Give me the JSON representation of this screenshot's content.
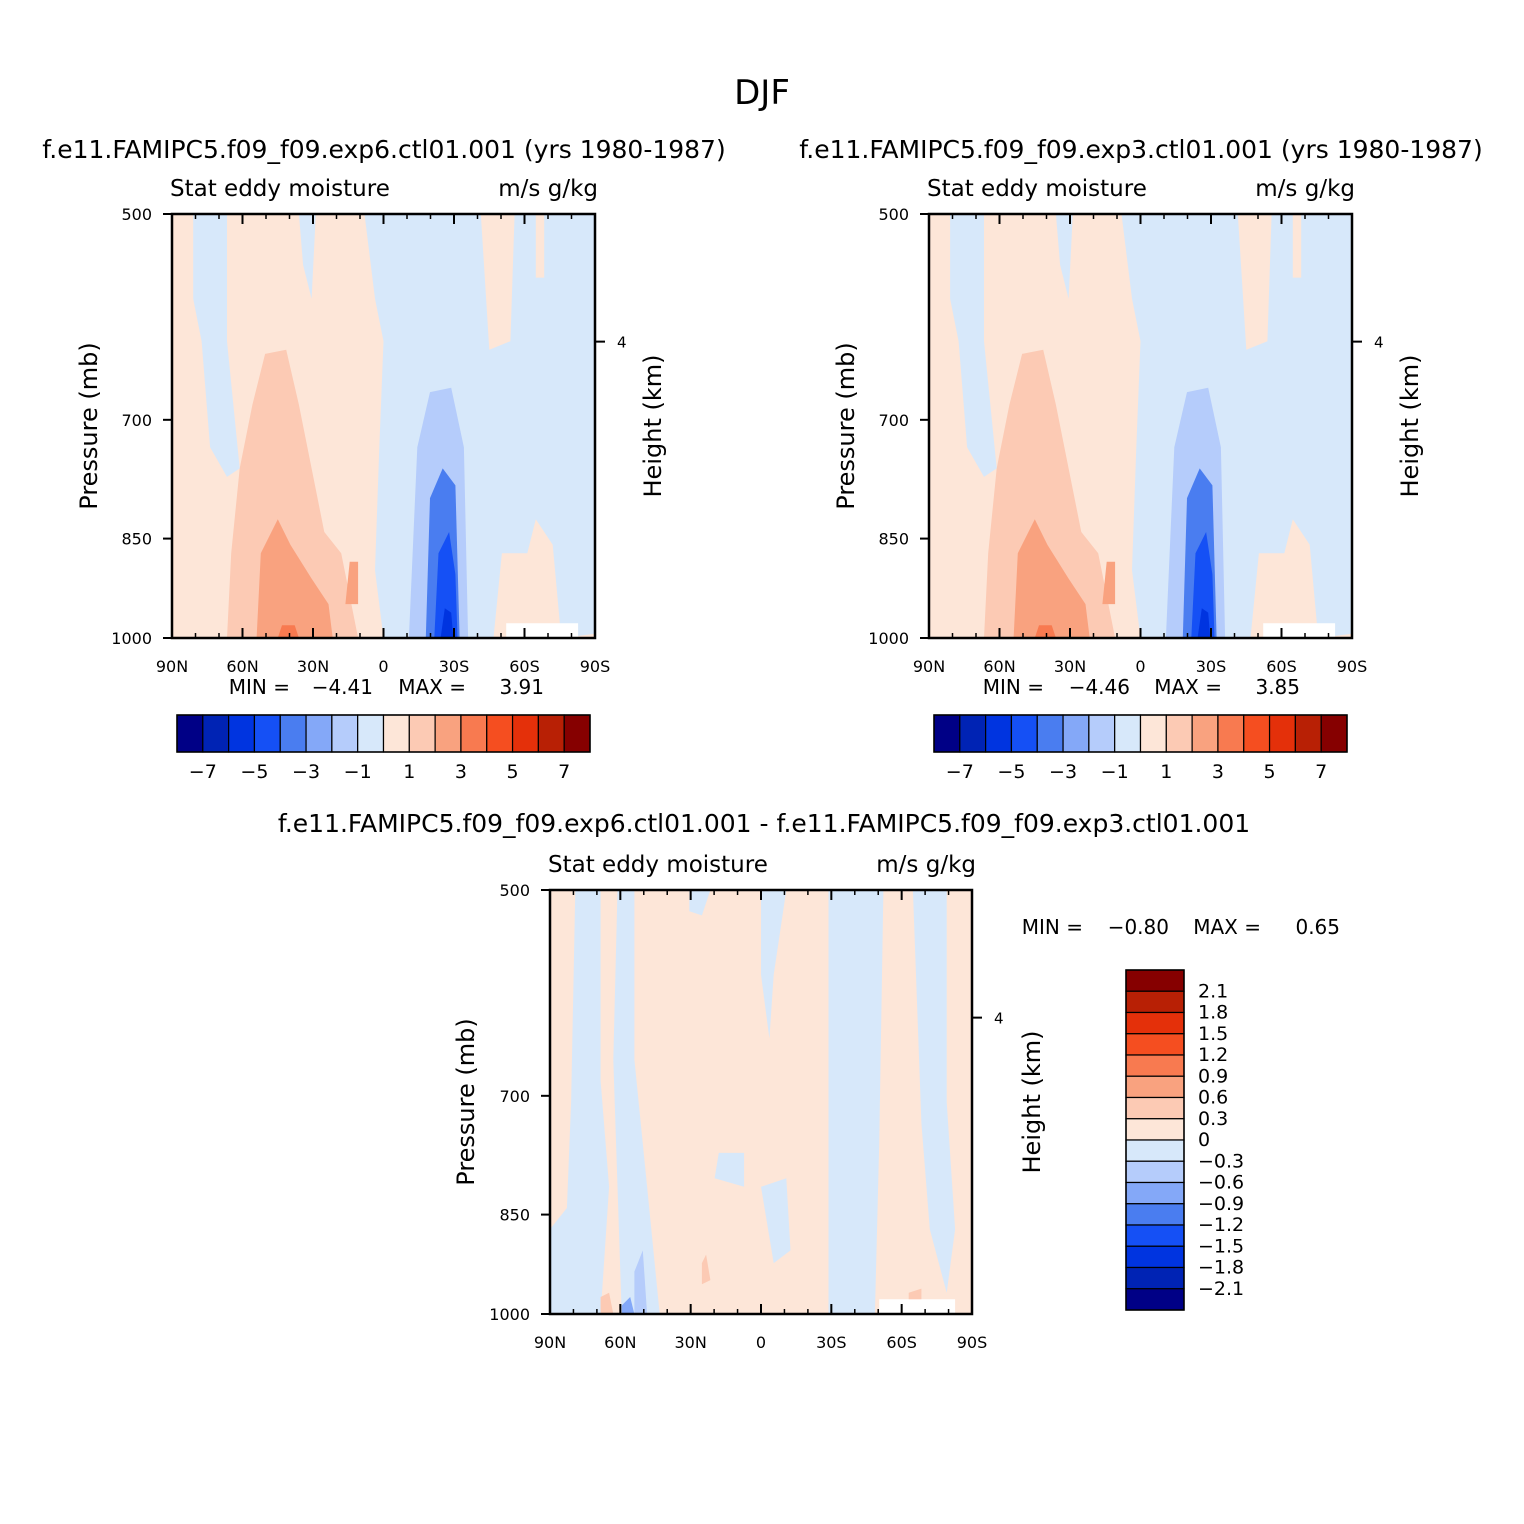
{
  "figure_title": "DJF",
  "colors": {
    "main_scale": [
      "#000086",
      "#0023b4",
      "#0034e0",
      "#1550f5",
      "#4a7df0",
      "#84a8f8",
      "#b5ccfb",
      "#d7e8fa",
      "#fde6d8",
      "#fccab4",
      "#f9a27f",
      "#f87a50",
      "#f54e20",
      "#e4300a",
      "#b82005",
      "#860000"
    ],
    "diff_scale": [
      "#000086",
      "#0023b4",
      "#0034e0",
      "#1550f5",
      "#4a7df0",
      "#84a8f8",
      "#b5ccfb",
      "#d7e8fa",
      "#fde6d8",
      "#fccab4",
      "#f9a27f",
      "#f87a50",
      "#f54e20",
      "#e4300a",
      "#b82005",
      "#860000"
    ]
  },
  "chart_data": [
    {
      "type": "heatmap",
      "title": "f.e11.FAMIPC5.f09_f09.exp6.ctl01.001 (yrs 1980-1987)",
      "left_string": "Stat eddy moisture",
      "right_string": "m/s g/kg",
      "ylabel": "Pressure (mb)",
      "ylabel_right": "Height (km)",
      "x_ticks": [
        "90N",
        "60N",
        "30N",
        "0",
        "30S",
        "60S",
        "90S"
      ],
      "y_ticks": [
        "500",
        "700",
        "850",
        "1000"
      ],
      "y_ticks_values": [
        500,
        700,
        850,
        1000
      ],
      "right_ticks": [
        "4"
      ],
      "right_ticks_pressure": [
        616
      ],
      "ylim": [
        1000,
        500
      ],
      "xlim": [
        90,
        -90
      ],
      "min_label": "MIN =",
      "min_value": "-4.41",
      "max_label": "MAX =",
      "max_value": "3.91",
      "levels": [
        -7,
        -6,
        -5,
        -4,
        -3,
        -2,
        -1,
        0,
        1,
        2,
        3,
        4,
        5,
        6,
        7
      ],
      "colorbar_labels": [
        "-7",
        "-5",
        "-3",
        "-1",
        "1",
        "3",
        "5",
        "7"
      ],
      "features": [
        {
          "lat": 40,
          "p_center": 870,
          "value": 2.5
        },
        {
          "lat": 45,
          "p_center": 780,
          "value": 1.5
        },
        {
          "lat": -28,
          "p_center": 920,
          "value": -4.0
        },
        {
          "lat": -25,
          "p_center": 790,
          "value": -2.0
        },
        {
          "lat": 15,
          "p_center": 900,
          "value": 1.2
        }
      ]
    },
    {
      "type": "heatmap",
      "title": "f.e11.FAMIPC5.f09_f09.exp3.ctl01.001 (yrs 1980-1987)",
      "left_string": "Stat eddy moisture",
      "right_string": "m/s g/kg",
      "ylabel": "Pressure (mb)",
      "ylabel_right": "Height (km)",
      "x_ticks": [
        "90N",
        "60N",
        "30N",
        "0",
        "30S",
        "60S",
        "90S"
      ],
      "y_ticks": [
        "500",
        "700",
        "850",
        "1000"
      ],
      "y_ticks_values": [
        500,
        700,
        850,
        1000
      ],
      "right_ticks": [
        "4"
      ],
      "right_ticks_pressure": [
        616
      ],
      "ylim": [
        1000,
        500
      ],
      "xlim": [
        90,
        -90
      ],
      "min_label": "MIN =",
      "min_value": "-4.46",
      "max_label": "MAX =",
      "max_value": "3.85",
      "levels": [
        -7,
        -6,
        -5,
        -4,
        -3,
        -2,
        -1,
        0,
        1,
        2,
        3,
        4,
        5,
        6,
        7
      ],
      "colorbar_labels": [
        "-7",
        "-5",
        "-3",
        "-1",
        "1",
        "3",
        "5",
        "7"
      ],
      "features": [
        {
          "lat": 40,
          "p_center": 870,
          "value": 2.5
        },
        {
          "lat": 45,
          "p_center": 780,
          "value": 1.5
        },
        {
          "lat": -28,
          "p_center": 920,
          "value": -4.0
        },
        {
          "lat": -25,
          "p_center": 790,
          "value": -2.0
        },
        {
          "lat": 15,
          "p_center": 900,
          "value": 1.2
        }
      ]
    },
    {
      "type": "heatmap",
      "title": "f.e11.FAMIPC5.f09_f09.exp6.ctl01.001 - f.e11.FAMIPC5.f09_f09.exp3.ctl01.001",
      "left_string": "Stat eddy moisture",
      "right_string": "m/s g/kg",
      "ylabel": "Pressure (mb)",
      "ylabel_right": "Height (km)",
      "x_ticks": [
        "90N",
        "60N",
        "30N",
        "0",
        "30S",
        "60S",
        "90S"
      ],
      "y_ticks": [
        "500",
        "700",
        "850",
        "1000"
      ],
      "y_ticks_values": [
        500,
        700,
        850,
        1000
      ],
      "right_ticks": [
        "4"
      ],
      "right_ticks_pressure": [
        616
      ],
      "ylim": [
        1000,
        500
      ],
      "xlim": [
        90,
        -90
      ],
      "min_label": "MIN =",
      "min_value": "-0.80",
      "max_label": "MAX =",
      "max_value": "0.65",
      "levels": [
        -2.1,
        -1.8,
        -1.5,
        -1.2,
        -0.9,
        -0.6,
        -0.3,
        0,
        0.3,
        0.6,
        0.9,
        1.2,
        1.5,
        1.8,
        2.1
      ],
      "colorbar_labels": [
        "2.1",
        "1.8",
        "1.5",
        "1.2",
        "0.9",
        "0.6",
        "0.3",
        "0",
        "-0.3",
        "-0.6",
        "-0.9",
        "-1.2",
        "-1.5",
        "-1.8",
        "-2.1"
      ]
    }
  ]
}
